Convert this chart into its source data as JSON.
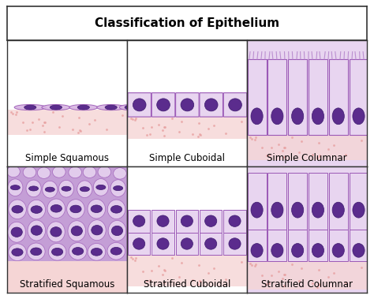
{
  "title": "Classification of Epithelium",
  "cells": [
    {
      "label": "Simple Squamous",
      "row": 0,
      "col": 0,
      "type": "simple_squamous"
    },
    {
      "label": "Simple Cuboidal",
      "row": 0,
      "col": 1,
      "type": "simple_cuboidal"
    },
    {
      "label": "Simple Columnar",
      "row": 0,
      "col": 2,
      "type": "simple_columnar"
    },
    {
      "label": "Stratified Squamous",
      "row": 1,
      "col": 0,
      "type": "stratified_squamous"
    },
    {
      "label": "Stratified Cuboidal",
      "row": 1,
      "col": 1,
      "type": "stratified_cuboidal"
    },
    {
      "label": "Stratified Columnar",
      "row": 1,
      "col": 2,
      "type": "stratified_columnar"
    }
  ],
  "colors": {
    "cell_fill": "#d8b4e2",
    "cell_outline": "#9b59b6",
    "nucleus_fill": "#5b2c8d",
    "nucleus_outline": "#3d1a6e",
    "basement": "#f2c4c4",
    "background": "#ffffff",
    "title_bg": "#ffffff",
    "border": "#333333",
    "light_purple": "#e8d5f0",
    "medium_purple": "#c49ed6",
    "dark_purple": "#7b3fa0",
    "pink_base": "#f5d5d5",
    "cilia_color": "#b07ec8"
  },
  "title_fontsize": 11,
  "label_fontsize": 8.5
}
